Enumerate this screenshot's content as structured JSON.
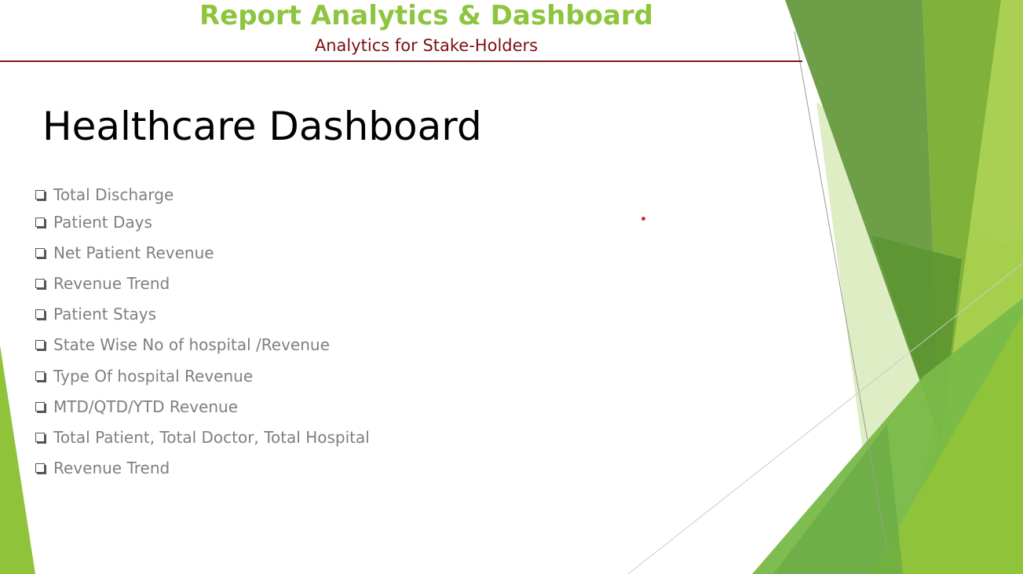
{
  "header": {
    "title": "Report Analytics & Dashboard",
    "subtitle": "Analytics for Stake-Holders"
  },
  "main": {
    "title": "Healthcare Dashboard",
    "items": [
      {
        "label": "Total Discharge"
      },
      {
        "label": "Patient Days"
      },
      {
        "label": "Net Patient Revenue"
      },
      {
        "label": "Revenue Trend"
      },
      {
        "label": "Patient Stays"
      },
      {
        "label": "State Wise No of hospital /Revenue"
      },
      {
        "label": "Type Of hospital Revenue"
      },
      {
        "label": "MTD/QTD/YTD Revenue"
      },
      {
        "label": "Total Patient, Total Doctor, Total Hospital"
      },
      {
        "label": "Revenue Trend"
      }
    ],
    "bullet_icon": "checkbox-square-icon"
  },
  "theme": {
    "title_color": "#8dc53e",
    "subtitle_color": "#7a0f0f",
    "bullet_text_color": "#7f7f7f",
    "accent_greens": [
      "#6a9a3f",
      "#84b532",
      "#a0c93c",
      "#c8e09a",
      "#dcecc0"
    ]
  }
}
